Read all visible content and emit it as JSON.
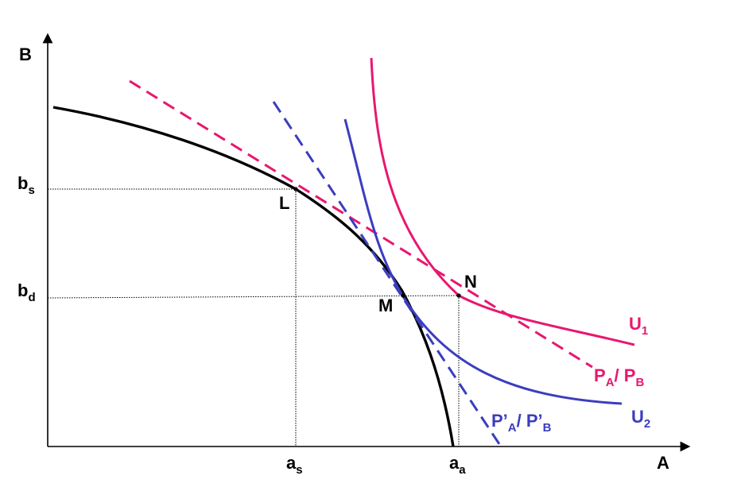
{
  "axes": {
    "x_label": "A",
    "y_label": "B"
  },
  "ticks": {
    "x": [
      {
        "main": "a",
        "sub": "s"
      },
      {
        "main": "a",
        "sub": "a"
      }
    ],
    "y": [
      {
        "main": "b",
        "sub": "s"
      },
      {
        "main": "b",
        "sub": "d"
      }
    ]
  },
  "points": {
    "L": "L",
    "M": "M",
    "N": "N"
  },
  "curves": {
    "u1": {
      "main": "U",
      "sub": "1"
    },
    "u2": {
      "main": "U",
      "sub": "2"
    },
    "price_line": {
      "p1": "P",
      "s1": "A",
      "sep": "/ ",
      "p2": "P",
      "s2": "B"
    },
    "price_line_new": {
      "p1": "P’",
      "s1": "A",
      "sep": "/ ",
      "p2": "P’",
      "s2": "B"
    }
  },
  "colors": {
    "ppf": "#000000",
    "magenta": "#e8176f",
    "blue": "#3b3dbf",
    "guide": "#000000"
  }
}
